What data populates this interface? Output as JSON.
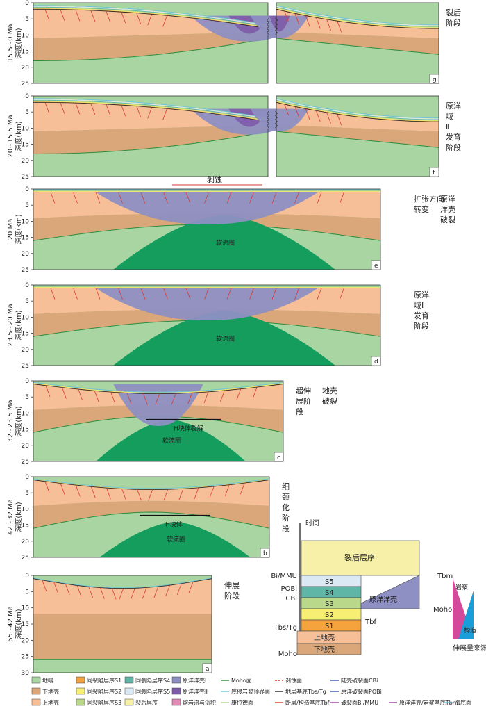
{
  "colors": {
    "mantle": "#a8d5a2",
    "lower_crust": "#d9a77a",
    "upper_crust": "#f6bf97",
    "s1": "#f5a33c",
    "s2": "#f7ef74",
    "s3": "#b9d88a",
    "s4": "#5fb5a6",
    "s5": "#dbe9f5",
    "postrift": "#f6f0a8",
    "proto1": "#8e8fc2",
    "proto2": "#7e5ba8",
    "magma": "#e08ab5",
    "asthenosphere": "#159d5e",
    "fault": "#d73a2f",
    "moho_line": "#2e8b3e",
    "seafloor": "#6ec3d6"
  },
  "axis_label": "深度(km)",
  "erosion_label": "剥蚀",
  "block_label": "H块体",
  "block_rift_label": "H块体裂解",
  "astheno_label": "软流圈",
  "panels": [
    {
      "id": "g",
      "age": "15.5~0 Ma",
      "ticks": [
        "0",
        "5",
        "10",
        "15",
        "20",
        "25"
      ],
      "stage": [
        "裂后",
        "阶段"
      ],
      "split": true
    },
    {
      "id": "f",
      "age": "20~15.5 Ma",
      "ticks": [
        "0",
        "5",
        "10",
        "15",
        "20",
        "25"
      ],
      "stage": [
        "原洋",
        "域",
        "Ⅱ",
        "发育",
        "阶段"
      ],
      "split": true
    },
    {
      "id": "e",
      "age": "20 Ma",
      "ticks": [
        "0",
        "5",
        "10",
        "15",
        "20",
        "25"
      ],
      "stage": [
        "扩张方向",
        "转变"
      ],
      "stage2": [
        "原洋",
        "洋壳",
        "破裂"
      ]
    },
    {
      "id": "d",
      "age": "23.5~20 Ma",
      "ticks": [
        "0",
        "5",
        "10",
        "15",
        "20",
        "25"
      ],
      "stage": [
        "原洋",
        "域Ⅰ",
        "发育",
        "阶段"
      ]
    },
    {
      "id": "c",
      "age": "32~23.5 Ma",
      "ticks": [
        "0",
        "5",
        "10",
        "15",
        "20",
        "25"
      ],
      "stage": [
        "超伸",
        "展阶",
        "段"
      ],
      "stage2": [
        "地壳",
        "破裂"
      ]
    },
    {
      "id": "b",
      "age": "42~32 Ma",
      "ticks": [
        "0",
        "5",
        "10",
        "15",
        "20",
        "25"
      ],
      "stage": [
        "细",
        "颈",
        "化",
        "阶",
        "段"
      ]
    },
    {
      "id": "a",
      "age": "65~42 Ma",
      "ticks": [
        "0",
        "5",
        "10",
        "15",
        "20",
        "25",
        "30"
      ],
      "stage": [
        "伸展",
        "阶段"
      ]
    }
  ],
  "column": {
    "time_label": "时间",
    "postrift": "裂后层序",
    "layers": [
      "S5",
      "S4",
      "S3",
      "S2",
      "S1"
    ],
    "upper_crust": "上地壳",
    "lower_crust": "下地壳",
    "proto_crust": "原洋洋壳",
    "left_labels": [
      "Bi/MMU",
      "POBi",
      "CBi",
      "Tbs/Tg",
      "Moho"
    ],
    "right_labels": [
      "Tbm",
      "Moho",
      "Tbf"
    ],
    "wedge_top": "岩浆",
    "wedge_bottom": "构造",
    "source_label": "伸展量来源"
  },
  "legend": [
    {
      "type": "box",
      "color": "#a8d5a2",
      "label": "地幔"
    },
    {
      "type": "box",
      "color": "#f5a33c",
      "label": "同裂陷层序S1"
    },
    {
      "type": "box",
      "color": "#5fb5a6",
      "label": "同裂陷层序S4"
    },
    {
      "type": "box",
      "color": "#8e8fc2",
      "label": "原洋洋壳Ⅰ"
    },
    {
      "type": "line",
      "color": "#2e8b3e",
      "label": "Moho面"
    },
    {
      "type": "dash",
      "color": "#d73a2f",
      "label": "剥蚀面"
    },
    {
      "type": "line",
      "color": "#3a4fa8",
      "label": "陆壳破裂面CBi"
    },
    {
      "type": "box",
      "color": "#d9a77a",
      "label": "下地壳"
    },
    {
      "type": "box",
      "color": "#f7ef74",
      "label": "同裂陷层序S2"
    },
    {
      "type": "box",
      "color": "#dbe9f5",
      "label": "同裂陷层序S5"
    },
    {
      "type": "box",
      "color": "#7e5ba8",
      "label": "原洋洋壳Ⅱ"
    },
    {
      "type": "line",
      "color": "#6ec3d6",
      "label": "底侵岩浆顶界面"
    },
    {
      "type": "line",
      "color": "#222222",
      "label": "地层基底Tbs/Tg"
    },
    {
      "type": "line",
      "color": "#3a4fa8",
      "label": "原洋破裂面POBi"
    },
    {
      "type": "box",
      "color": "#f6bf97",
      "label": "上地壳"
    },
    {
      "type": "box",
      "color": "#b9d88a",
      "label": "同裂陷层序S3"
    },
    {
      "type": "box",
      "color": "#f6f0a8",
      "label": "裂后层序"
    },
    {
      "type": "box",
      "color": "#e08ab5",
      "label": "熔岩流与沉积"
    },
    {
      "type": "line",
      "color": "#b9d88a",
      "label": "康拉德面"
    },
    {
      "type": "line",
      "color": "#d73a2f",
      "label": "断层/构造基底Tbf"
    },
    {
      "type": "line",
      "color": "#9a3b9e",
      "label": "破裂面Bi/MMU"
    },
    {
      "type": "line",
      "color": "#9a3b9e",
      "label": "原洋洋壳/岩浆基底Tbm"
    },
    {
      "type": "line",
      "color": "#6ec3d6",
      "label": "海底面"
    }
  ]
}
